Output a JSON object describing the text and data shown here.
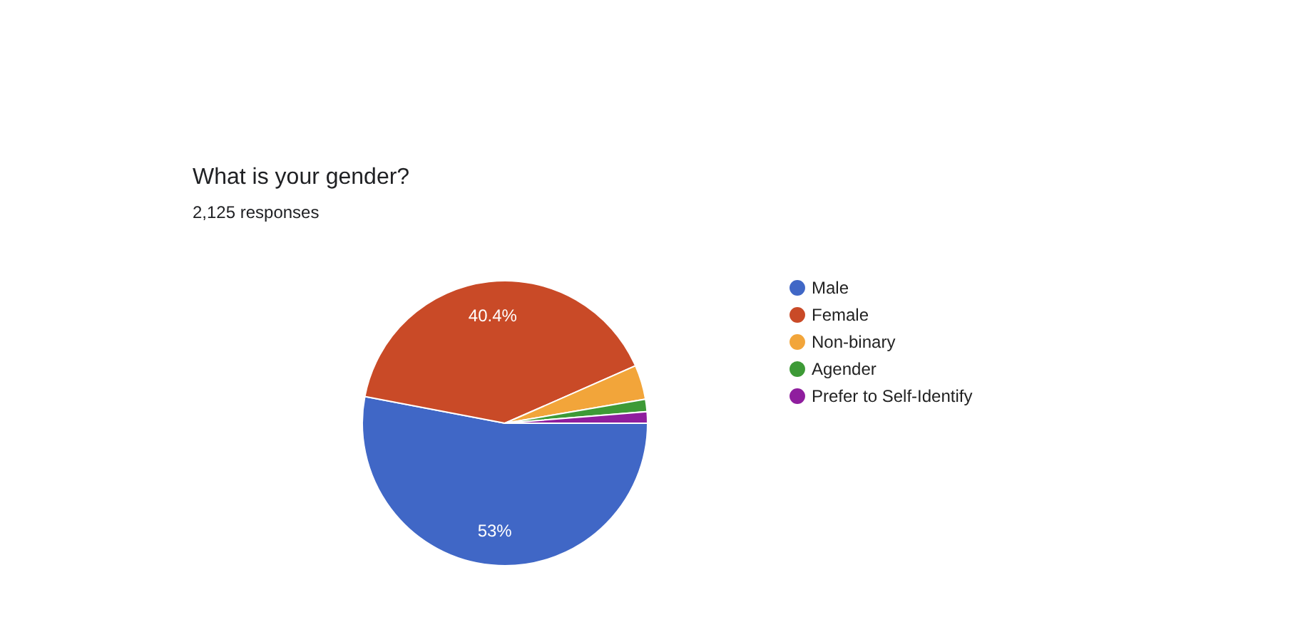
{
  "chart_data": {
    "type": "pie",
    "title": "What is your gender?",
    "subtitle": "2,125 responses",
    "categories": [
      "Male",
      "Female",
      "Non-binary",
      "Agender",
      "Prefer to Self-Identify"
    ],
    "values": [
      53,
      40.4,
      3.9,
      1.4,
      1.3
    ],
    "colors": [
      "#4067c6",
      "#c94a27",
      "#f2a53a",
      "#3d9a36",
      "#8f1e9e"
    ],
    "value_labels": [
      "53%",
      "40.4%",
      null,
      null,
      null
    ],
    "legend": "right"
  }
}
